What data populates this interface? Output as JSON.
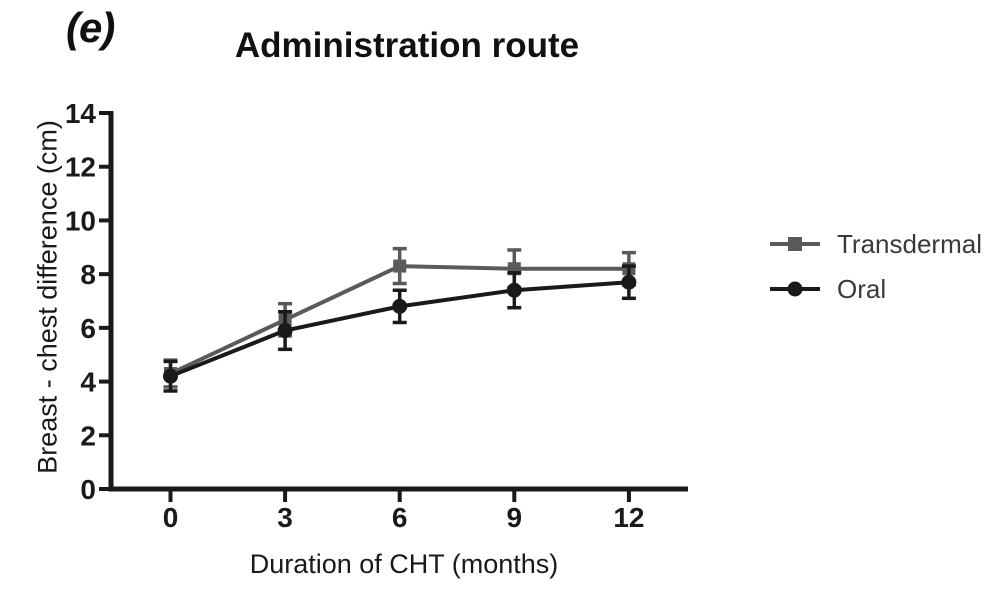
{
  "panel_label": "(e)",
  "chart_data": {
    "type": "line",
    "title": "Administration route",
    "xlabel": "Duration of CHT (months)",
    "ylabel": "Breast - chest difference (cm)",
    "x": [
      0,
      3,
      6,
      9,
      12
    ],
    "xtick_labels": [
      "0",
      "3",
      "6",
      "9",
      "12"
    ],
    "ytick_values": [
      0,
      2,
      4,
      6,
      8,
      10,
      12,
      14
    ],
    "ytick_labels": [
      "0",
      "2",
      "4",
      "6",
      "8",
      "10",
      "12",
      "14"
    ],
    "xlim": [
      0,
      12
    ],
    "ylim": [
      0,
      14
    ],
    "grid": false,
    "error_bars": true,
    "legend_position": "outside-right",
    "series": [
      {
        "name": "Transdermal",
        "marker": "square",
        "color": "#5a5a5a",
        "values": [
          4.3,
          6.3,
          8.3,
          8.2,
          8.2
        ],
        "errors": [
          0.5,
          0.6,
          0.65,
          0.7,
          0.6
        ]
      },
      {
        "name": "Oral",
        "marker": "circle",
        "color": "#1a1a1a",
        "values": [
          4.2,
          5.9,
          6.8,
          7.4,
          7.7
        ],
        "errors": [
          0.55,
          0.7,
          0.6,
          0.65,
          0.6
        ]
      }
    ]
  },
  "colors": {
    "axis": "#1a1a1a",
    "tick_text": "#1a1a1a",
    "legend_text": "#3a3a3a",
    "background": "#ffffff"
  }
}
